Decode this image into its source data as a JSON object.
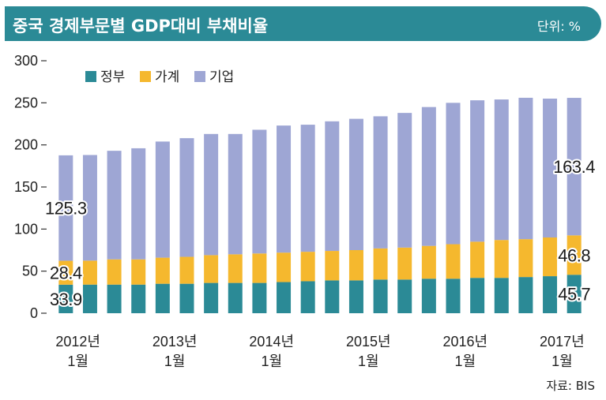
{
  "header": {
    "title": "중국 경제부문별 GDP대비 부채비율",
    "unit": "단위: %"
  },
  "source": "자료: BIS",
  "colors": {
    "header_bg": "#2b8a96",
    "government": "#2b8a96",
    "household": "#f5b82e",
    "corporate": "#9ea6d4"
  },
  "chart_data": {
    "type": "bar",
    "stacked": true,
    "ylim": [
      0,
      300
    ],
    "yticks": [
      0,
      50,
      100,
      150,
      200,
      250,
      300
    ],
    "ytick_labels": [
      "0",
      "50",
      "100",
      "150",
      "200",
      "250",
      "300"
    ],
    "legend_position": "top-left",
    "grid": false,
    "categories": [
      "2012-03",
      "2012-06",
      "2012-09",
      "2012-12",
      "2013-03",
      "2013-06",
      "2013-09",
      "2013-12",
      "2014-03",
      "2014-06",
      "2014-09",
      "2014-12",
      "2015-03",
      "2015-06",
      "2015-09",
      "2015-12",
      "2016-03",
      "2016-06",
      "2016-09",
      "2016-12",
      "2017-03",
      "2017-06"
    ],
    "x_tick_labels": [
      {
        "index": 0,
        "year": "2012년",
        "month": "1월"
      },
      {
        "index": 4,
        "year": "2013년",
        "month": "1월"
      },
      {
        "index": 8,
        "year": "2014년",
        "month": "1월"
      },
      {
        "index": 12,
        "year": "2015년",
        "month": "1월"
      },
      {
        "index": 16,
        "year": "2016년",
        "month": "1월"
      },
      {
        "index": 20,
        "year": "2017년",
        "month": "1월"
      }
    ],
    "series": [
      {
        "name": "정부",
        "color": "#2b8a96",
        "values": [
          33.9,
          34,
          34,
          34,
          35,
          35,
          36,
          36,
          36,
          37,
          38,
          39,
          39,
          40,
          40,
          41,
          41,
          42,
          42,
          43,
          44,
          45.7
        ]
      },
      {
        "name": "가계",
        "color": "#f5b82e",
        "values": [
          28.4,
          28.5,
          30,
          30,
          31,
          32,
          33,
          34,
          35,
          35,
          35,
          35,
          36,
          37,
          38,
          39,
          41,
          43,
          45,
          45,
          46,
          46.8
        ]
      },
      {
        "name": "기업",
        "color": "#9ea6d4",
        "values": [
          125.3,
          125.5,
          129,
          132,
          138,
          141,
          144,
          143,
          147,
          151,
          151,
          154,
          156,
          157,
          160,
          165,
          168,
          168,
          167,
          168,
          165,
          163.4
        ]
      }
    ],
    "data_labels": [
      {
        "bar": 0,
        "series": 0,
        "text": "33.9"
      },
      {
        "bar": 0,
        "series": 1,
        "text": "28.4"
      },
      {
        "bar": 0,
        "series": 2,
        "text": "125.3"
      },
      {
        "bar": 21,
        "series": 0,
        "text": "45.7"
      },
      {
        "bar": 21,
        "series": 1,
        "text": "46.8"
      },
      {
        "bar": 21,
        "series": 2,
        "text": "163.4"
      }
    ]
  }
}
